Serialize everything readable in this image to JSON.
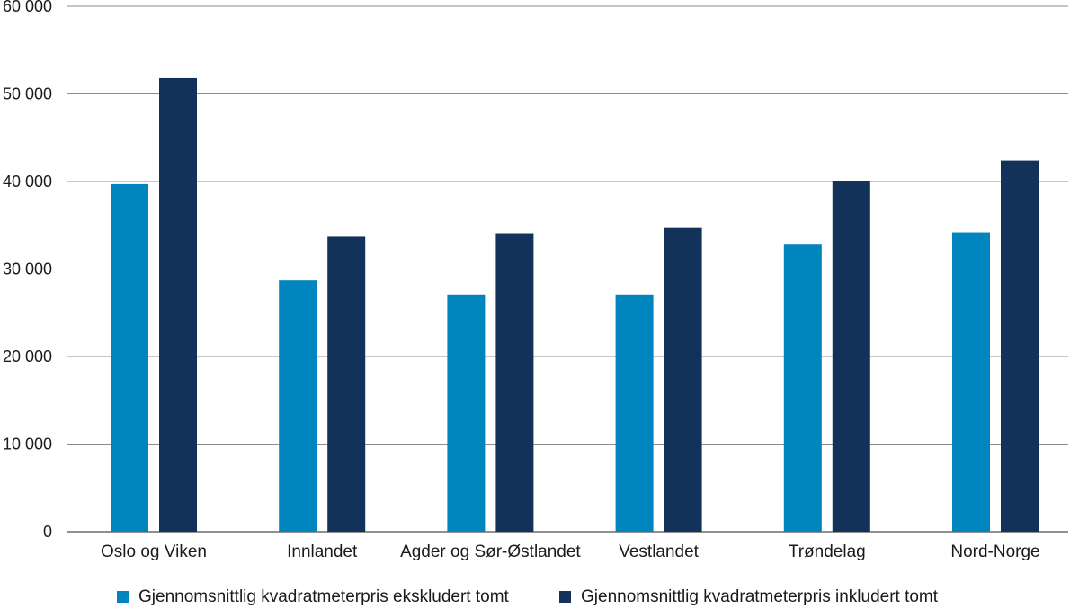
{
  "chart_data": {
    "type": "bar",
    "categories": [
      "Oslo og Viken",
      "Innlandet",
      "Agder og Sør-Østlandet",
      "Vestlandet",
      "Trøndelag",
      "Nord-Norge"
    ],
    "series": [
      {
        "name": "Gjennomsnittlig kvadratmeterpris ekskludert tomt",
        "color": "#0085be",
        "values": [
          39700,
          28700,
          27100,
          27100,
          32800,
          34200
        ]
      },
      {
        "name": "Gjennomsnittlig kvadratmeterpris inkludert tomt",
        "color": "#13325a",
        "values": [
          51800,
          33700,
          34100,
          34700,
          40000,
          42400
        ]
      }
    ],
    "ylim": [
      0,
      60000
    ],
    "yticks": [
      0,
      10000,
      20000,
      30000,
      40000,
      50000,
      60000
    ],
    "ytick_labels": [
      "0",
      "10 000",
      "20 000",
      "30 000",
      "40 000",
      "50 000",
      "60 000"
    ],
    "grid": true,
    "legend_position": "bottom"
  }
}
